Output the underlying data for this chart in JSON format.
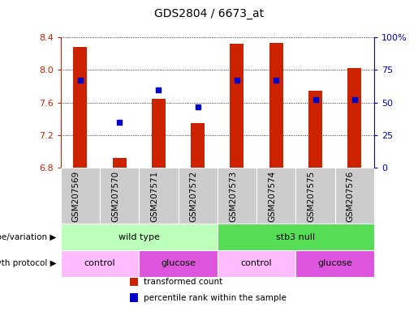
{
  "title": "GDS2804 / 6673_at",
  "samples": [
    "GSM207569",
    "GSM207570",
    "GSM207571",
    "GSM207572",
    "GSM207573",
    "GSM207574",
    "GSM207575",
    "GSM207576"
  ],
  "transformed_count": [
    8.28,
    6.92,
    7.65,
    7.35,
    8.32,
    8.33,
    7.75,
    8.02
  ],
  "percentile_rank": [
    67,
    35,
    60,
    47,
    67,
    67,
    52,
    52
  ],
  "ylim_left": [
    6.8,
    8.4
  ],
  "ylim_right": [
    0,
    100
  ],
  "yticks_left": [
    6.8,
    7.2,
    7.6,
    8.0,
    8.4
  ],
  "yticks_right": [
    0,
    25,
    50,
    75,
    100
  ],
  "ytick_labels_right": [
    "0",
    "25",
    "50",
    "75",
    "100%"
  ],
  "bar_color": "#cc2200",
  "dot_color": "#0000cc",
  "bar_bottom": 6.8,
  "bar_width": 0.35,
  "genotype_groups": [
    {
      "label": "wild type",
      "start": 0,
      "end": 4,
      "color": "#bbffbb"
    },
    {
      "label": "stb3 null",
      "start": 4,
      "end": 8,
      "color": "#55dd55"
    }
  ],
  "protocol_groups": [
    {
      "label": "control",
      "start": 0,
      "end": 2,
      "color": "#ffbbff"
    },
    {
      "label": "glucose",
      "start": 2,
      "end": 4,
      "color": "#dd55dd"
    },
    {
      "label": "control",
      "start": 4,
      "end": 6,
      "color": "#ffbbff"
    },
    {
      "label": "glucose",
      "start": 6,
      "end": 8,
      "color": "#dd55dd"
    }
  ],
  "legend_items": [
    {
      "label": "transformed count",
      "color": "#cc2200"
    },
    {
      "label": "percentile rank within the sample",
      "color": "#0000cc"
    }
  ],
  "left_axis_color": "#cc2200",
  "right_axis_color": "#0000cc",
  "xlabels_bg_color": "#cccccc",
  "title_fontsize": 10,
  "tick_fontsize": 8,
  "label_fontsize": 8,
  "row_label_fontsize": 7.5,
  "legend_fontsize": 7.5
}
